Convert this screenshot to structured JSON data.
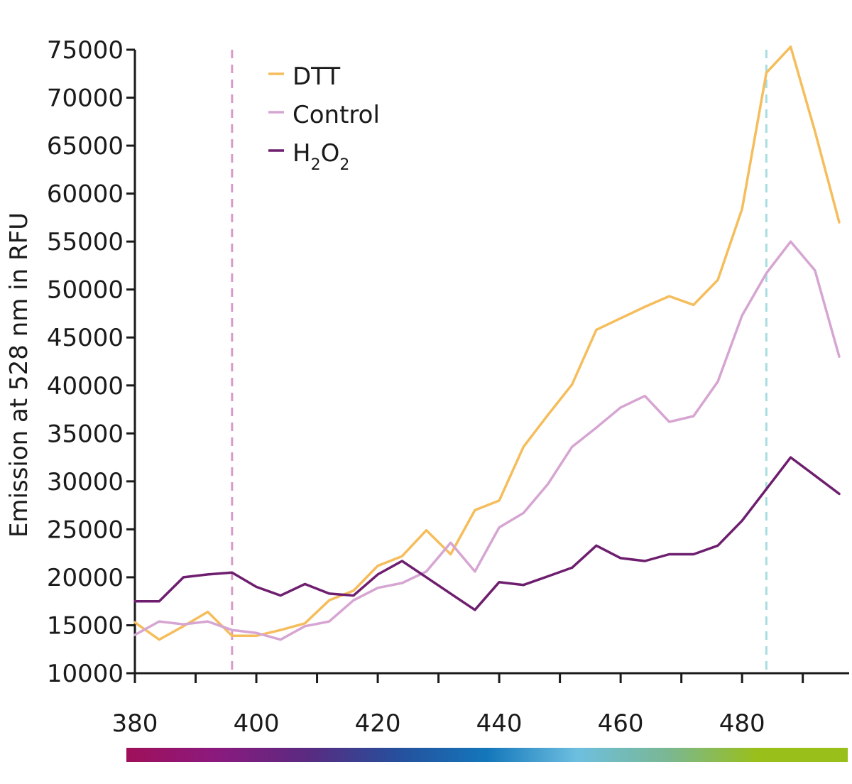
{
  "chart_data": {
    "type": "line",
    "title": "",
    "xlabel": "",
    "ylabel": "Emission at 528 nm in RFU",
    "xlim": [
      380,
      496
    ],
    "ylim": [
      10000,
      75000
    ],
    "x_ticks": [
      380,
      400,
      420,
      440,
      460,
      480
    ],
    "y_ticks": [
      10000,
      15000,
      20000,
      25000,
      30000,
      35000,
      40000,
      45000,
      50000,
      55000,
      60000,
      65000,
      70000,
      75000
    ],
    "grid": false,
    "legend_position": "top-left",
    "x": [
      380,
      384,
      388,
      392,
      396,
      400,
      404,
      408,
      412,
      416,
      420,
      424,
      428,
      432,
      436,
      440,
      444,
      448,
      452,
      456,
      460,
      464,
      468,
      472,
      476,
      480,
      484,
      488,
      492,
      496
    ],
    "series": [
      {
        "name": "DTT",
        "color": "#f5bd5b",
        "values": [
          15300,
          13500,
          14900,
          16400,
          13900,
          13900,
          14500,
          15200,
          17600,
          18600,
          21200,
          22200,
          24900,
          22400,
          27000,
          28000,
          33600,
          36900,
          40100,
          45800,
          47000,
          48200,
          49300,
          48400,
          51000,
          58400,
          72600,
          75300,
          66500,
          57000
        ]
      },
      {
        "name": "Control",
        "color": "#d6a5d2",
        "values": [
          14000,
          15400,
          15100,
          15400,
          14500,
          14200,
          13500,
          14900,
          15400,
          17600,
          18900,
          19400,
          20600,
          23600,
          20600,
          25200,
          26700,
          29700,
          33600,
          35600,
          37700,
          38900,
          36200,
          36800,
          40400,
          47300,
          51700,
          55000,
          52000,
          43000
        ]
      },
      {
        "name": "H2O2",
        "label_main": "H",
        "label_sub1": "2",
        "label_mid": "O",
        "label_sub2": "2",
        "color": "#6e1e6e",
        "values": [
          17500,
          17500,
          20000,
          20300,
          20500,
          19000,
          18100,
          19300,
          18300,
          18100,
          20300,
          21700,
          20000,
          18300,
          16600,
          19500,
          19200,
          20100,
          21000,
          23300,
          22000,
          21700,
          22400,
          22400,
          23300,
          25900,
          29200,
          32500,
          30600,
          28700
        ]
      }
    ],
    "reference_lines": [
      {
        "x": 396,
        "color": "#d89bc9",
        "style": "dashed"
      },
      {
        "x": 484,
        "color": "#a8dde0",
        "style": "dashed"
      }
    ],
    "color_bar": {
      "gradient_stops": [
        "#a0105a",
        "#8b1a7e",
        "#5a2a80",
        "#264f9c",
        "#1477bb",
        "#6dbfe0",
        "#7ab793",
        "#99bf1a",
        "#99bf1a"
      ]
    }
  }
}
